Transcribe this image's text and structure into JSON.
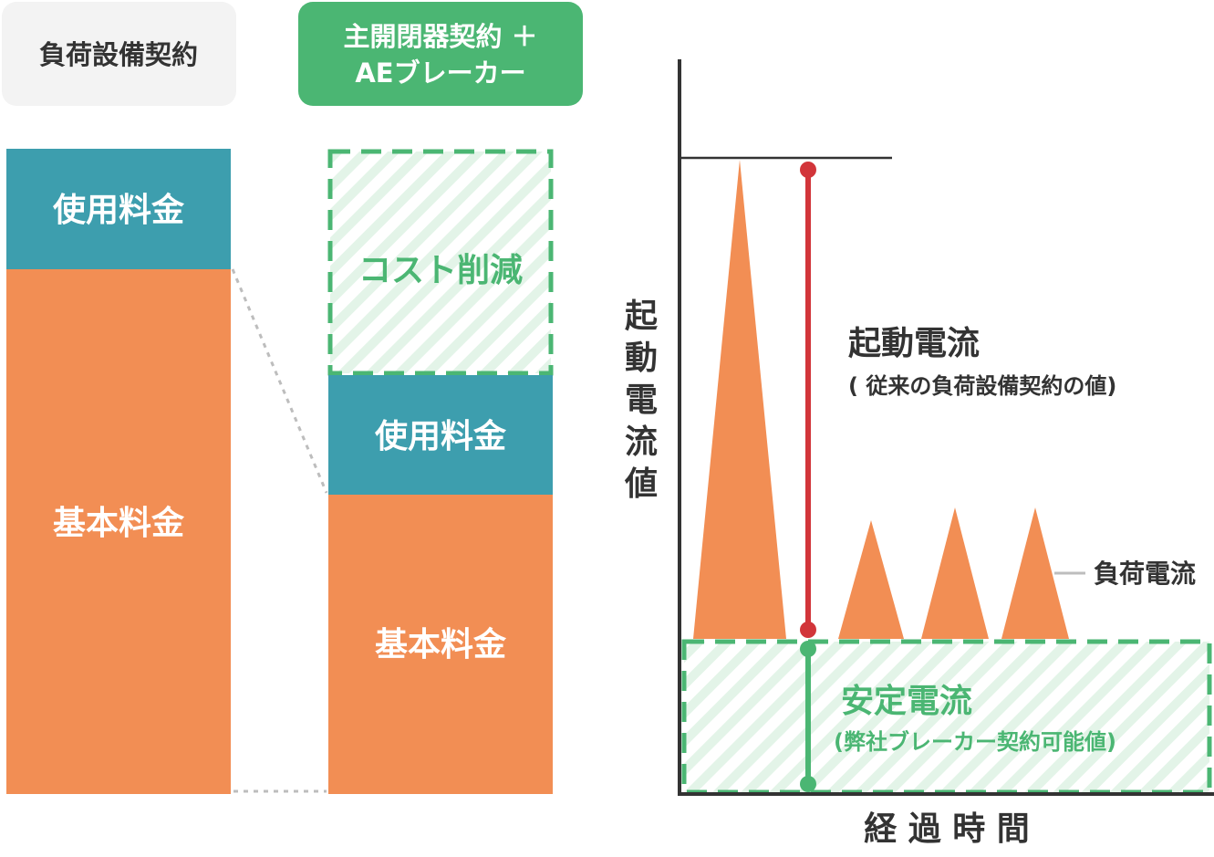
{
  "colors": {
    "orange": "#f28e54",
    "teal": "#3d9eae",
    "green": "#4bb673",
    "green_light": "#e3f4e8",
    "red": "#d2353a",
    "pill_gray": "#f3f3f3",
    "text_dark": "#333333",
    "connector_gray": "#bdbdbd"
  },
  "left_column": {
    "header": "負荷設備契約",
    "usage_fee": "使用料金",
    "base_fee": "基本料金"
  },
  "right_column": {
    "header_line1": "主開閉器契約 ＋",
    "header_line2": "AEブレーカー",
    "cost_reduction": "コスト削減",
    "usage_fee": "使用料金",
    "base_fee": "基本料金"
  },
  "graph": {
    "y_axis_chars": [
      "起",
      "動",
      "電",
      "流",
      "値"
    ],
    "x_axis_label": "経 過 時 間",
    "inrush_label": "起動電流",
    "inrush_note": "( 従来の負荷設備契約の値)",
    "load_current_label": "負荷電流",
    "steady_label": "安定電流",
    "steady_note": "(弊社ブレーカー契約可能値)"
  }
}
